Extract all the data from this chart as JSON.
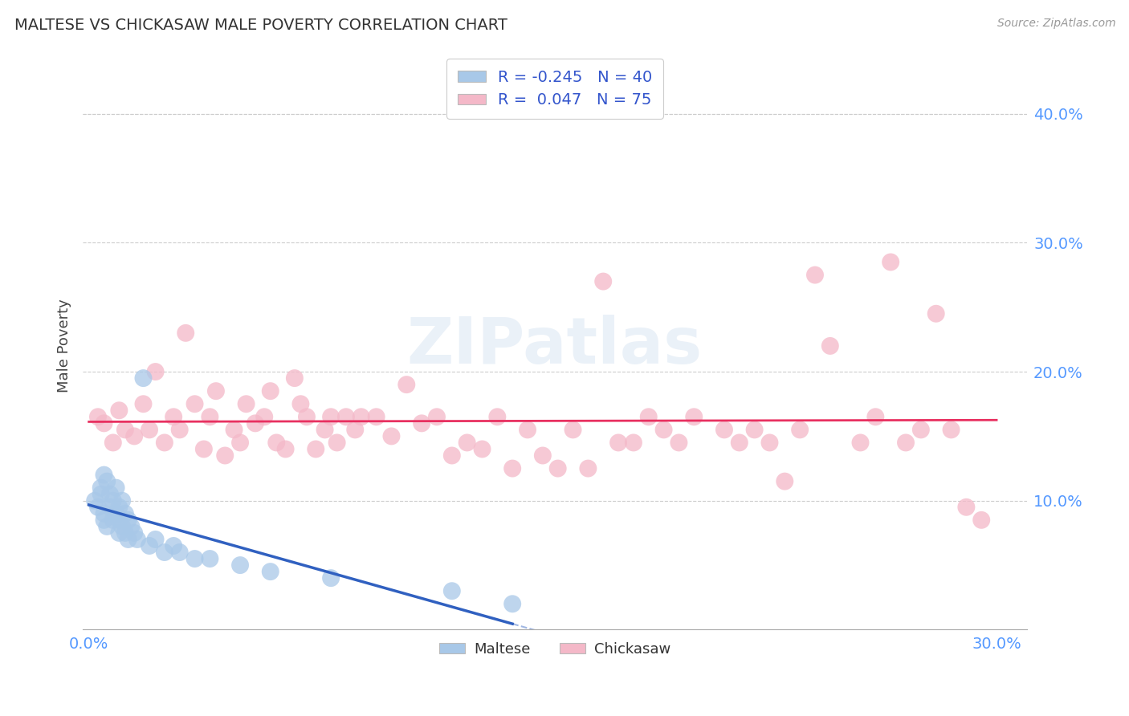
{
  "title": "MALTESE VS CHICKASAW MALE POVERTY CORRELATION CHART",
  "source": "Source: ZipAtlas.com",
  "ylabel": "Male Poverty",
  "tick_label_color": "#5599ff",
  "x_tick_labels_shown": [
    "0.0%",
    "30.0%"
  ],
  "x_tick_values_shown": [
    0.0,
    0.3
  ],
  "y_tick_labels": [
    "10.0%",
    "20.0%",
    "30.0%",
    "40.0%"
  ],
  "y_tick_values": [
    0.1,
    0.2,
    0.3,
    0.4
  ],
  "xlim": [
    -0.002,
    0.31
  ],
  "ylim": [
    0.0,
    0.44
  ],
  "maltese_color": "#a8c8e8",
  "chickasaw_color": "#f4b8c8",
  "maltese_R": -0.245,
  "maltese_N": 40,
  "chickasaw_R": 0.047,
  "chickasaw_N": 75,
  "maltese_line_color": "#3060c0",
  "chickasaw_line_color": "#e83060",
  "legend_label_maltese": "Maltese",
  "legend_label_chickasaw": "Chickasaw",
  "watermark": "ZIPatlas",
  "maltese_x": [
    0.002,
    0.003,
    0.004,
    0.004,
    0.005,
    0.005,
    0.005,
    0.006,
    0.006,
    0.007,
    0.007,
    0.008,
    0.008,
    0.009,
    0.009,
    0.01,
    0.01,
    0.01,
    0.011,
    0.011,
    0.012,
    0.012,
    0.013,
    0.013,
    0.014,
    0.015,
    0.016,
    0.018,
    0.02,
    0.022,
    0.025,
    0.028,
    0.03,
    0.035,
    0.04,
    0.05,
    0.06,
    0.08,
    0.12,
    0.14
  ],
  "maltese_y": [
    0.1,
    0.095,
    0.105,
    0.11,
    0.085,
    0.09,
    0.12,
    0.08,
    0.115,
    0.095,
    0.105,
    0.085,
    0.1,
    0.09,
    0.11,
    0.075,
    0.085,
    0.095,
    0.08,
    0.1,
    0.075,
    0.09,
    0.07,
    0.085,
    0.08,
    0.075,
    0.07,
    0.195,
    0.065,
    0.07,
    0.06,
    0.065,
    0.06,
    0.055,
    0.055,
    0.05,
    0.045,
    0.04,
    0.03,
    0.02
  ],
  "chickasaw_x": [
    0.003,
    0.005,
    0.008,
    0.01,
    0.012,
    0.015,
    0.018,
    0.02,
    0.022,
    0.025,
    0.028,
    0.03,
    0.032,
    0.035,
    0.038,
    0.04,
    0.042,
    0.045,
    0.048,
    0.05,
    0.052,
    0.055,
    0.058,
    0.06,
    0.062,
    0.065,
    0.068,
    0.07,
    0.072,
    0.075,
    0.078,
    0.08,
    0.082,
    0.085,
    0.088,
    0.09,
    0.095,
    0.1,
    0.105,
    0.11,
    0.115,
    0.12,
    0.125,
    0.13,
    0.135,
    0.14,
    0.145,
    0.15,
    0.155,
    0.16,
    0.165,
    0.17,
    0.175,
    0.18,
    0.185,
    0.19,
    0.195,
    0.2,
    0.21,
    0.215,
    0.22,
    0.225,
    0.23,
    0.235,
    0.24,
    0.245,
    0.255,
    0.26,
    0.265,
    0.27,
    0.275,
    0.28,
    0.285,
    0.29,
    0.295
  ],
  "chickasaw_y": [
    0.165,
    0.16,
    0.145,
    0.17,
    0.155,
    0.15,
    0.175,
    0.155,
    0.2,
    0.145,
    0.165,
    0.155,
    0.23,
    0.175,
    0.14,
    0.165,
    0.185,
    0.135,
    0.155,
    0.145,
    0.175,
    0.16,
    0.165,
    0.185,
    0.145,
    0.14,
    0.195,
    0.175,
    0.165,
    0.14,
    0.155,
    0.165,
    0.145,
    0.165,
    0.155,
    0.165,
    0.165,
    0.15,
    0.19,
    0.16,
    0.165,
    0.135,
    0.145,
    0.14,
    0.165,
    0.125,
    0.155,
    0.135,
    0.125,
    0.155,
    0.125,
    0.27,
    0.145,
    0.145,
    0.165,
    0.155,
    0.145,
    0.165,
    0.155,
    0.145,
    0.155,
    0.145,
    0.115,
    0.155,
    0.275,
    0.22,
    0.145,
    0.165,
    0.285,
    0.145,
    0.155,
    0.245,
    0.155,
    0.095,
    0.085
  ]
}
